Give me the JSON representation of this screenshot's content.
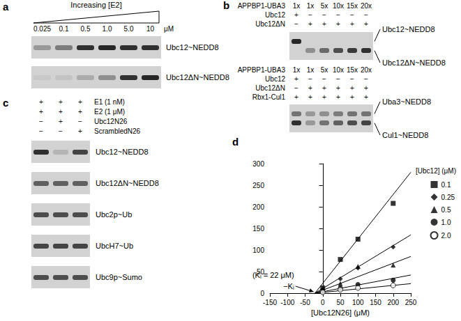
{
  "panels": [
    {
      "label": "a",
      "blocks": [
        {
          "header": "Increasing [E2]",
          "lanes": [
            "0.025",
            "0.1",
            "0.5",
            "1.0",
            "5.0",
            "10"
          ],
          "lane_unit": "μM",
          "conditions": [],
          "gels": [
            {
              "rows": [
                {
                  "label": "Ubc12~NEDD8",
                  "bands": [
                    0.3,
                    0.45,
                    0.85,
                    0.9,
                    0.85,
                    0.85
                  ]
                }
              ]
            },
            {
              "rows": [
                {
                  "label": "Ubc12ΔN~NEDD8",
                  "bands": [
                    0.05,
                    0.08,
                    0.2,
                    0.35,
                    0.85,
                    0.9
                  ]
                }
              ]
            }
          ]
        }
      ]
    },
    {
      "label": "b",
      "blocks": [
        {
          "conditions": [
            {
              "label": "APPBP1-UBA3",
              "values": [
                "1x",
                "1x",
                "5x",
                "10x",
                "15x",
                "20x"
              ]
            },
            {
              "label": "Ubc12",
              "values": [
                "+",
                "−",
                "−",
                "−",
                "−",
                "−"
              ]
            },
            {
              "label": "Ubc12ΔN",
              "values": [
                "−",
                "+",
                "+",
                "+",
                "+",
                "+"
              ]
            }
          ],
          "gels": [
            {
              "rows": [
                {
                  "label": "Ubc12~NEDD8",
                  "bands": [
                    0.9,
                    0,
                    0,
                    0,
                    0,
                    0
                  ]
                },
                {
                  "label": "Ubc12ΔN~NEDD8",
                  "bands": [
                    0,
                    0.35,
                    0.55,
                    0.7,
                    0.8,
                    0.85
                  ]
                }
              ]
            }
          ]
        },
        {
          "conditions": [
            {
              "label": "APPBP1-UBA3",
              "values": [
                "1x",
                "1x",
                "5x",
                "10x",
                "15x",
                "20x"
              ]
            },
            {
              "label": "Ubc12",
              "values": [
                "+",
                "−",
                "−",
                "−",
                "−",
                "−"
              ]
            },
            {
              "label": "Ubc12ΔN",
              "values": [
                "−",
                "+",
                "+",
                "+",
                "+",
                "+"
              ]
            },
            {
              "label": "Rbx1-Cul1",
              "values": [
                "+",
                "+",
                "+",
                "+",
                "+",
                "+"
              ]
            }
          ],
          "gels": [
            {
              "rows": [
                {
                  "label": "Uba3~NEDD8",
                  "bands": [
                    0.5,
                    0.3,
                    0.35,
                    0.45,
                    0.5,
                    0.5
                  ]
                },
                {
                  "label": "Cul1~NEDD8",
                  "bands": [
                    0.85,
                    0.3,
                    0.5,
                    0.6,
                    0.7,
                    0.75
                  ]
                }
              ]
            }
          ]
        }
      ]
    },
    {
      "label": "c",
      "blocks": [
        {
          "conditions": [
            {
              "label": "E1 (1 nM)",
              "values": [
                "+",
                "+",
                "+"
              ]
            },
            {
              "label": "E2 (1 μM)",
              "values": [
                "+",
                "+",
                "+"
              ]
            },
            {
              "label": "Ubc12N26",
              "values": [
                "−",
                "+",
                "−"
              ]
            },
            {
              "label": "ScrambledN26",
              "values": [
                "−",
                "−",
                "+"
              ]
            }
          ],
          "gels": [
            {
              "rows": [
                {
                  "label": "Ubc12~NEDD8",
                  "bands": [
                    0.85,
                    0.15,
                    0.75
                  ]
                }
              ]
            },
            {
              "rows": [
                {
                  "label": "Ubc12ΔN~NEDD8",
                  "bands": [
                    0.6,
                    0.6,
                    0.6
                  ]
                }
              ]
            },
            {
              "rows": [
                {
                  "label": "Ubc2p~Ub",
                  "bands": [
                    0.7,
                    0.7,
                    0.7
                  ]
                }
              ]
            },
            {
              "rows": [
                {
                  "label": "UbcH7~Ub",
                  "bands": [
                    0.75,
                    0.75,
                    0.75
                  ]
                }
              ]
            },
            {
              "rows": [
                {
                  "label": "Ubc9p~Sumo",
                  "bands": [
                    0.7,
                    0.7,
                    0.7
                  ]
                }
              ]
            }
          ]
        }
      ]
    }
  ],
  "chart_data": {
    "type": "scatter",
    "panel": "d",
    "x_label": "[Ubc12N26] (μM)",
    "legend_title": "[Ubc12] (μM)",
    "legend": "right",
    "grid": false,
    "x": [
      0,
      50,
      100,
      200
    ],
    "series": [
      {
        "name": "0.1",
        "color": "#000000",
        "marker": "square",
        "values": [
          12,
          78,
          125,
          208
        ],
        "fit": {
          "x": [
            -22,
            250
          ],
          "y": [
            0,
            280
          ]
        }
      },
      {
        "name": "0.25",
        "color": "#000000",
        "marker": "diamond",
        "values": [
          8,
          33,
          58,
          107
        ],
        "fit": {
          "x": [
            -22,
            250
          ],
          "y": [
            0,
            135
          ]
        }
      },
      {
        "name": "0.5",
        "color": "#000000",
        "marker": "triangle",
        "values": [
          5,
          22,
          62,
          65
        ],
        "fit": {
          "x": [
            -22,
            250
          ],
          "y": [
            0,
            85
          ]
        }
      },
      {
        "name": "1.0",
        "color": "#000000",
        "marker": "circle",
        "values": [
          3,
          12,
          20,
          30
        ],
        "fit": {
          "x": [
            -22,
            250
          ],
          "y": [
            0,
            42
          ]
        }
      },
      {
        "name": "2.0",
        "color": "#000000",
        "marker": "circle_open",
        "values": [
          2,
          8,
          12,
          18
        ],
        "fit": {
          "x": [
            -22,
            250
          ],
          "y": [
            0,
            22
          ]
        }
      }
    ],
    "xlim": [
      -150,
      250
    ],
    "xticks": [
      -150,
      -100,
      -50,
      0,
      50,
      100,
      150,
      200,
      250
    ],
    "ylim": [
      0,
      300
    ],
    "yticks": [
      0,
      50,
      100,
      150,
      200,
      250,
      300
    ],
    "annotations": [
      {
        "text": "(Kᵢ = 22 μM)",
        "arrow_label": "−Kᵢ",
        "x": -22,
        "y": 0
      }
    ]
  }
}
